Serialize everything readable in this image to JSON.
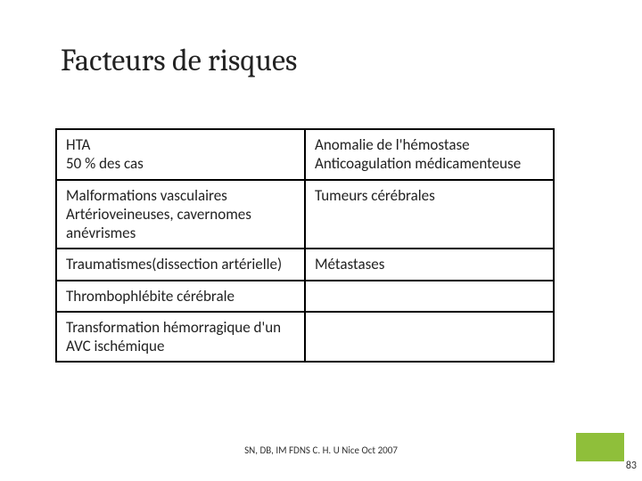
{
  "title": "Facteurs de risques",
  "table": {
    "rows": [
      {
        "left": "HTA\n50 %  des cas",
        "right": "Anomalie de l'hémostase\nAnticoagulation médicamenteuse"
      },
      {
        "left": "Malformations vasculaires\nArtérioveineuses, cavernomes anévrismes",
        "right": "Tumeurs cérébrales"
      },
      {
        "left": "Traumatismes(dissection artérielle)",
        "right": "Métastases"
      },
      {
        "left": "Thrombophlébite cérébrale",
        "right": ""
      },
      {
        "left": "Transformation hémorragique d'un AVC ischémique",
        "right": ""
      }
    ]
  },
  "footer": "SN, DB, IM FDNS  C. H. U Nice  Oct 2007",
  "page_number": "83",
  "colors": {
    "accent": "#8fbf3a",
    "border": "#000000",
    "text": "#222222",
    "background": "#ffffff"
  }
}
